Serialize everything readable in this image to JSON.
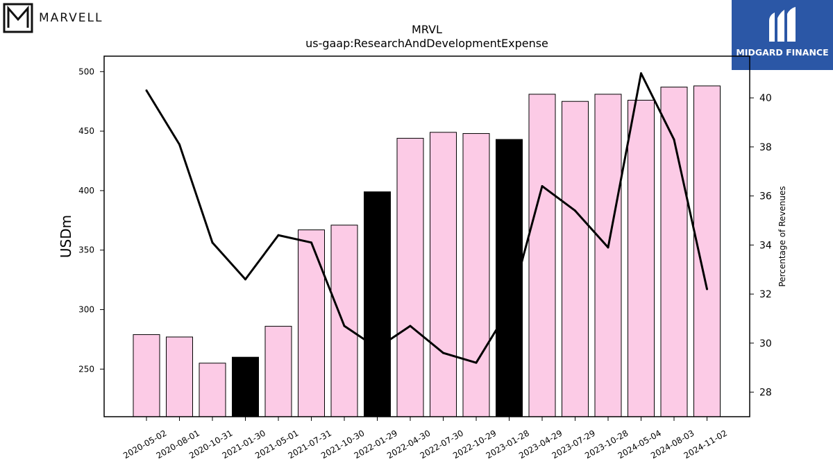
{
  "logos": {
    "left_text": "MARVELL",
    "right_text": "MIDGARD FINANCE"
  },
  "chart_data": {
    "type": "bar",
    "title": "MRVL",
    "subtitle": "us-gaap:ResearchAndDevelopmentExpense",
    "ylabel": "USDm",
    "y2label": "Percentage of Revenues",
    "ylim": [
      210,
      513
    ],
    "y2lim": [
      27.0,
      41.7
    ],
    "yticks": [
      250,
      300,
      350,
      400,
      450,
      500
    ],
    "y2ticks": [
      28,
      30,
      32,
      34,
      36,
      38,
      40
    ],
    "categories": [
      "2020-05-02",
      "2020-08-01",
      "2020-10-31",
      "2021-01-30",
      "2021-05-01",
      "2021-07-31",
      "2021-10-30",
      "2022-01-29",
      "2022-04-30",
      "2022-07-30",
      "2022-10-29",
      "2023-01-28",
      "2023-04-29",
      "2023-07-29",
      "2023-10-28",
      "2024-05-04",
      "2024-08-03",
      "2024-11-02"
    ],
    "series": [
      {
        "type": "bar",
        "values": [
          279,
          277,
          255,
          260,
          286,
          367,
          371,
          399,
          444,
          449,
          448,
          443,
          481,
          475,
          481,
          476,
          487,
          488
        ],
        "highlight": [
          false,
          false,
          false,
          true,
          false,
          false,
          false,
          true,
          false,
          false,
          false,
          true,
          false,
          false,
          false,
          false,
          false,
          false
        ],
        "color": "#fccbe6",
        "highlight_color": "#000000"
      },
      {
        "type": "line",
        "axis": "right",
        "values": [
          40.3,
          38.1,
          34.1,
          32.6,
          34.4,
          34.1,
          30.7,
          29.8,
          30.7,
          29.6,
          29.2,
          31.4,
          36.4,
          35.4,
          33.9,
          41.0,
          38.3,
          32.2
        ],
        "color": "#000000"
      }
    ],
    "grid": false
  }
}
